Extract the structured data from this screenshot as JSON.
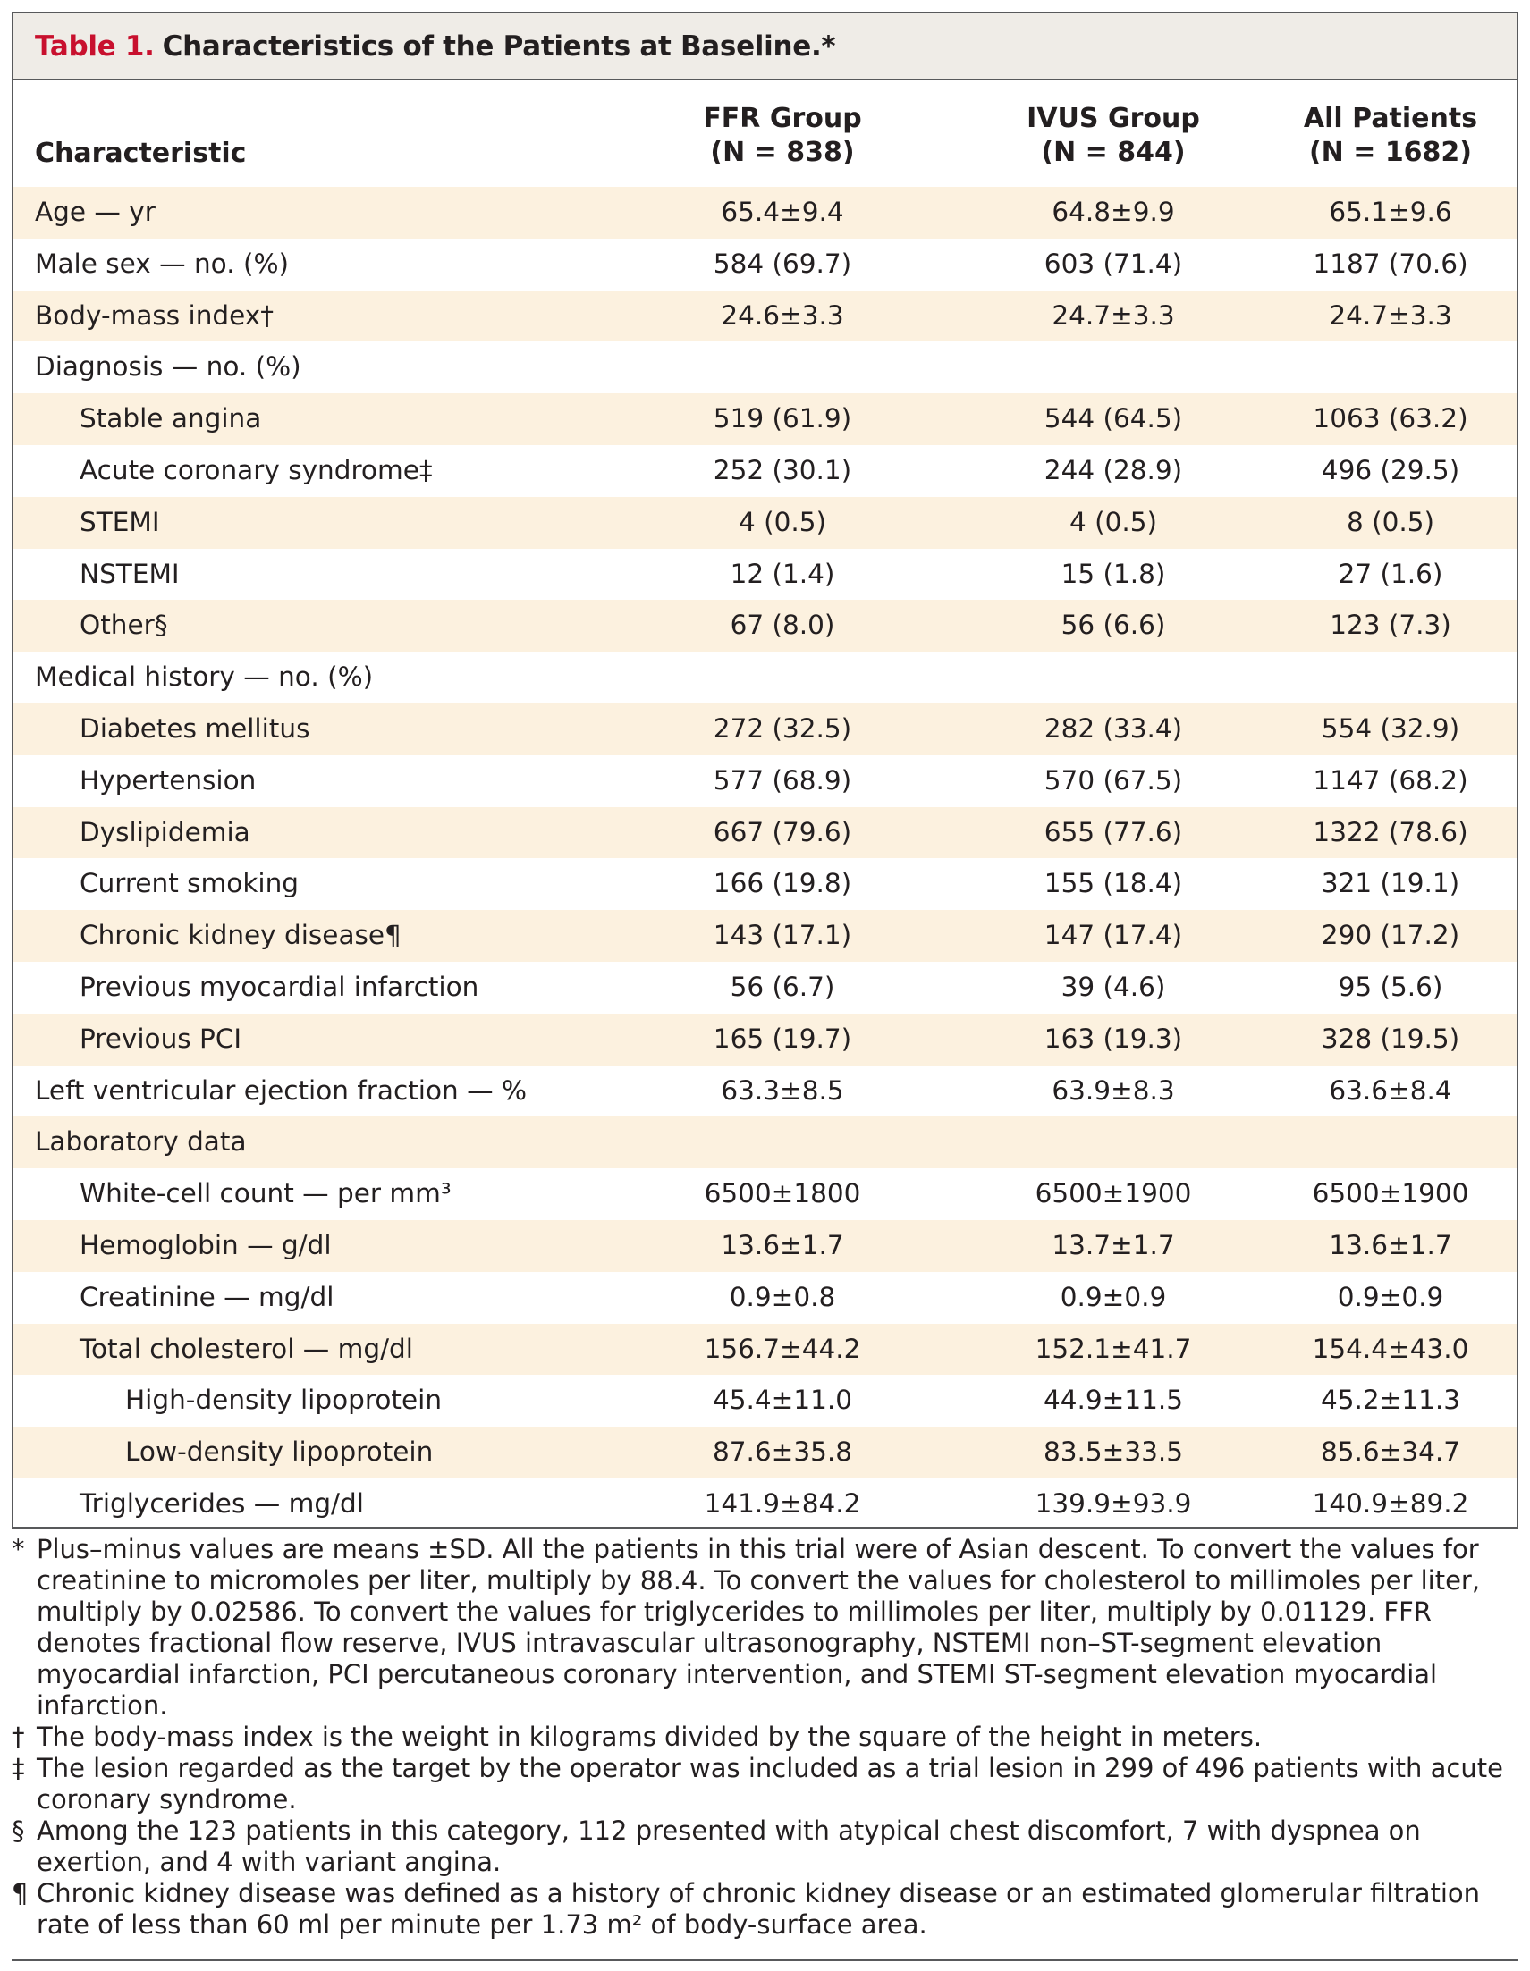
{
  "table": {
    "number": "Table 1.",
    "title": "Characteristics of the Patients at Baseline.*",
    "header": {
      "characteristic": "Characteristic",
      "cols": [
        {
          "line1": "FFR Group",
          "line2": "(N = 838)"
        },
        {
          "line1": "IVUS Group",
          "line2": "(N = 844)"
        },
        {
          "line1": "All Patients",
          "line2": "(N = 1682)"
        }
      ]
    },
    "rows": [
      {
        "label": "Age — yr",
        "indent": 0,
        "values": [
          "65.4±9.4",
          "64.8±9.9",
          "65.1±9.6"
        ]
      },
      {
        "label": "Male sex — no. (%)",
        "indent": 0,
        "values": [
          "584 (69.7)",
          "603 (71.4)",
          "1187 (70.6)"
        ]
      },
      {
        "label": "Body-mass index†",
        "indent": 0,
        "values": [
          "24.6±3.3",
          "24.7±3.3",
          "24.7±3.3"
        ]
      },
      {
        "label": "Diagnosis — no. (%)",
        "indent": 0,
        "values": [
          "",
          "",
          ""
        ]
      },
      {
        "label": "Stable angina",
        "indent": 1,
        "values": [
          "519 (61.9)",
          "544 (64.5)",
          "1063 (63.2)"
        ]
      },
      {
        "label": "Acute coronary syndrome‡",
        "indent": 1,
        "values": [
          "252 (30.1)",
          "244 (28.9)",
          "496 (29.5)"
        ]
      },
      {
        "label": "STEMI",
        "indent": 1,
        "values": [
          "4 (0.5)",
          "4 (0.5)",
          "8 (0.5)"
        ]
      },
      {
        "label": "NSTEMI",
        "indent": 1,
        "values": [
          "12 (1.4)",
          "15 (1.8)",
          "27 (1.6)"
        ]
      },
      {
        "label": "Other§",
        "indent": 1,
        "values": [
          "67 (8.0)",
          "56 (6.6)",
          "123 (7.3)"
        ]
      },
      {
        "label": "Medical history — no. (%)",
        "indent": 0,
        "values": [
          "",
          "",
          ""
        ]
      },
      {
        "label": "Diabetes mellitus",
        "indent": 1,
        "values": [
          "272 (32.5)",
          "282 (33.4)",
          "554 (32.9)"
        ]
      },
      {
        "label": "Hypertension",
        "indent": 1,
        "values": [
          "577 (68.9)",
          "570 (67.5)",
          "1147 (68.2)"
        ]
      },
      {
        "label": "Dyslipidemia",
        "indent": 1,
        "values": [
          "667 (79.6)",
          "655 (77.6)",
          "1322 (78.6)"
        ]
      },
      {
        "label": "Current smoking",
        "indent": 1,
        "values": [
          "166 (19.8)",
          "155 (18.4)",
          "321 (19.1)"
        ]
      },
      {
        "label": "Chronic kidney disease¶",
        "indent": 1,
        "values": [
          "143 (17.1)",
          "147 (17.4)",
          "290 (17.2)"
        ]
      },
      {
        "label": "Previous myocardial infarction",
        "indent": 1,
        "values": [
          "56 (6.7)",
          "39 (4.6)",
          "95 (5.6)"
        ]
      },
      {
        "label": "Previous PCI",
        "indent": 1,
        "values": [
          "165 (19.7)",
          "163 (19.3)",
          "328 (19.5)"
        ]
      },
      {
        "label": "Left ventricular ejection fraction — %",
        "indent": 0,
        "values": [
          "63.3±8.5",
          "63.9±8.3",
          "63.6±8.4"
        ]
      },
      {
        "label": "Laboratory data",
        "indent": 0,
        "values": [
          "",
          "",
          ""
        ]
      },
      {
        "label": "White-cell count — per mm³",
        "indent": 1,
        "values": [
          "6500±1800",
          "6500±1900",
          "6500±1900"
        ]
      },
      {
        "label": "Hemoglobin — g/dl",
        "indent": 1,
        "values": [
          "13.6±1.7",
          "13.7±1.7",
          "13.6±1.7"
        ]
      },
      {
        "label": "Creatinine — mg/dl",
        "indent": 1,
        "values": [
          "0.9±0.8",
          "0.9±0.9",
          "0.9±0.9"
        ]
      },
      {
        "label": "Total cholesterol — mg/dl",
        "indent": 1,
        "values": [
          "156.7±44.2",
          "152.1±41.7",
          "154.4±43.0"
        ]
      },
      {
        "label": "High-density lipoprotein",
        "indent": 2,
        "values": [
          "45.4±11.0",
          "44.9±11.5",
          "45.2±11.3"
        ]
      },
      {
        "label": "Low-density lipoprotein",
        "indent": 2,
        "values": [
          "87.6±35.8",
          "83.5±33.5",
          "85.6±34.7"
        ]
      },
      {
        "label": "Triglycerides — mg/dl",
        "indent": 1,
        "values": [
          "141.9±84.2",
          "139.9±93.9",
          "140.9±89.2"
        ]
      }
    ]
  },
  "footnotes": [
    {
      "mark": "*",
      "text": "Plus–minus values are means ±SD. All the patients in this trial were of Asian descent. To convert the values for creatinine to micromoles per liter, multiply by 88.4. To convert the values for cholesterol to millimoles per liter, multiply by 0.02586. To convert the values for triglycerides to millimoles per liter, multiply by 0.01129. FFR denotes fractional flow reserve, IVUS intravascular ultrasonography, NSTEMI non–ST-segment elevation myocardial infarction, PCI percutaneous coronary intervention, and STEMI ST-segment elevation myocardial infarction."
    },
    {
      "mark": "†",
      "text": "The body-mass index is the weight in kilograms divided by the square of the height in meters."
    },
    {
      "mark": "‡",
      "text": "The lesion regarded as the target by the operator was included as a trial lesion in 299 of 496 patients with acute coronary syndrome."
    },
    {
      "mark": "§",
      "text": "Among the 123 patients in this category, 112 presented with atypical chest discomfort, 7 with dyspnea on exertion, and 4 with variant angina."
    },
    {
      "mark": "¶",
      "text": "Chronic kidney disease was defined as a history of chronic kidney disease or an estimated glomerular filtration rate of less than 60 ml per minute per 1.73 m² of body-surface area."
    }
  ],
  "colors": {
    "title_number": "#c8102e",
    "row_shade": "#fcf1df",
    "title_bg": "#efece7"
  }
}
